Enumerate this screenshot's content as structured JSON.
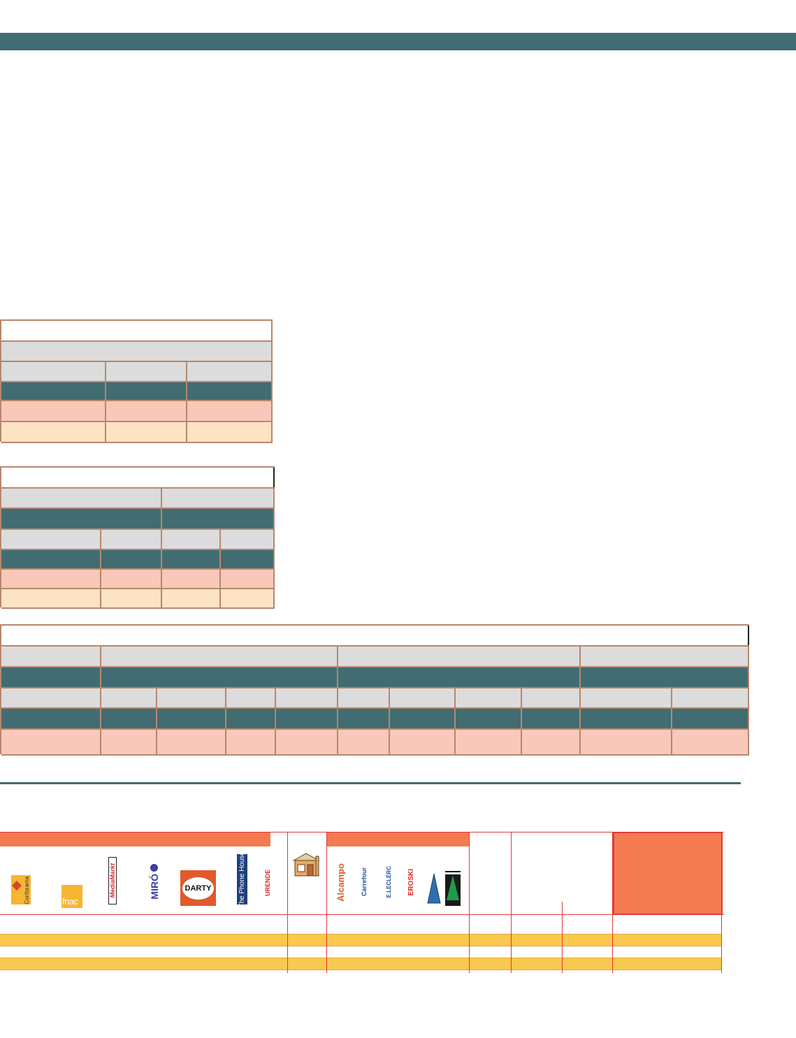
{
  "colors": {
    "teal": "#416c72",
    "grey": "#dcdcdc",
    "pink": "#f8c8b8",
    "peach": "#fde2c4",
    "orange": "#f47a52",
    "red_line": "#e23a3a",
    "yellow": "#f9c84e"
  },
  "retailer_logos": {
    "electronics_chains": [
      "Conforama",
      "fnac",
      "MediaMarkt",
      "MIRÓ",
      "DARTY",
      "The Phone House",
      "URENDE"
    ],
    "hypermarkets": [
      "Alcampo",
      "Carrefour",
      "E.LECLERC",
      "EROSKI"
    ],
    "icons": [
      "small-shop-icon",
      "triangle-logo-icon",
      "el-corte-ingles-logo-icon"
    ]
  }
}
